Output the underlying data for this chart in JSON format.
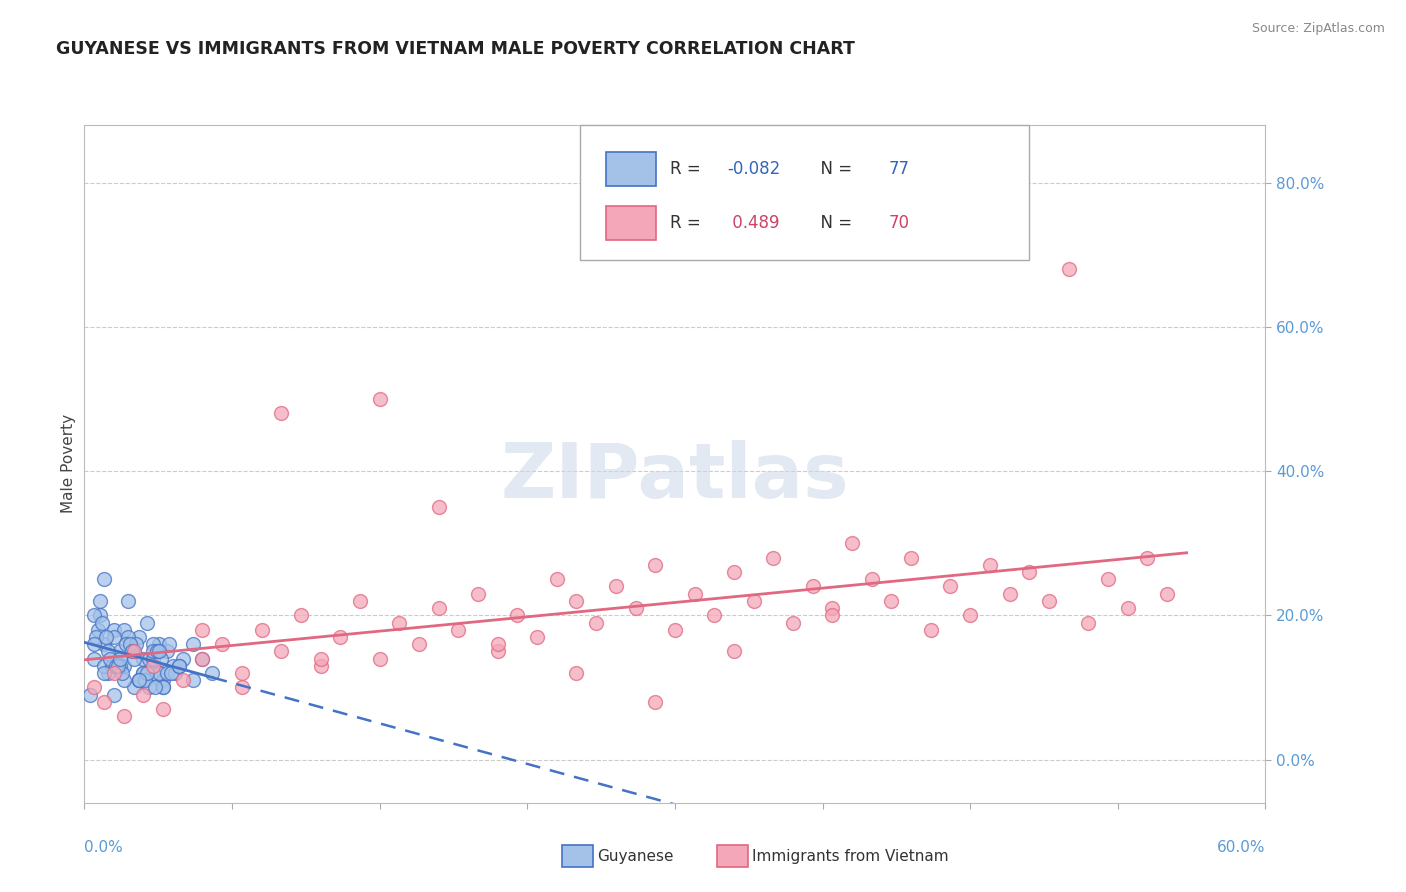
{
  "title": "GUYANESE VS IMMIGRANTS FROM VIETNAM MALE POVERTY CORRELATION CHART",
  "source": "Source: ZipAtlas.com",
  "ylabel": "Male Poverty",
  "y_tick_values": [
    0.0,
    0.2,
    0.4,
    0.6,
    0.8
  ],
  "xlim": [
    0.0,
    0.6
  ],
  "ylim": [
    -0.06,
    0.88
  ],
  "legend_label1": "Guyanese",
  "legend_label2": "Immigrants from Vietnam",
  "color_blue": "#a4c2e8",
  "color_pink": "#f4a7b9",
  "color_blue_line": "#4472c4",
  "color_pink_line": "#e06880",
  "color_blue_dark": "#3366bb",
  "color_pink_dark": "#cc4466",
  "background_color": "#ffffff",
  "r1": "-0.082",
  "n1": "77",
  "r2": "0.489",
  "n2": "70",
  "guyanese_x": [
    0.005,
    0.008,
    0.01,
    0.012,
    0.015,
    0.018,
    0.02,
    0.022,
    0.025,
    0.028,
    0.03,
    0.032,
    0.035,
    0.038,
    0.04,
    0.042,
    0.045,
    0.01,
    0.015,
    0.02,
    0.025,
    0.03,
    0.035,
    0.04,
    0.008,
    0.012,
    0.018,
    0.022,
    0.028,
    0.033,
    0.038,
    0.043,
    0.005,
    0.01,
    0.015,
    0.02,
    0.025,
    0.03,
    0.035,
    0.04,
    0.007,
    0.014,
    0.021,
    0.028,
    0.035,
    0.042,
    0.006,
    0.013,
    0.019,
    0.026,
    0.033,
    0.039,
    0.046,
    0.009,
    0.016,
    0.023,
    0.031,
    0.037,
    0.044,
    0.05,
    0.011,
    0.017,
    0.024,
    0.032,
    0.036,
    0.048,
    0.055,
    0.06,
    0.065,
    0.055,
    0.048,
    0.038,
    0.028,
    0.018,
    0.01,
    0.005,
    0.003
  ],
  "guyanese_y": [
    0.14,
    0.2,
    0.16,
    0.12,
    0.18,
    0.15,
    0.13,
    0.22,
    0.1,
    0.17,
    0.14,
    0.19,
    0.12,
    0.16,
    0.11,
    0.15,
    0.13,
    0.25,
    0.09,
    0.18,
    0.14,
    0.12,
    0.16,
    0.1,
    0.22,
    0.15,
    0.13,
    0.17,
    0.11,
    0.14,
    0.12,
    0.16,
    0.2,
    0.13,
    0.17,
    0.11,
    0.15,
    0.12,
    0.14,
    0.1,
    0.18,
    0.13,
    0.16,
    0.11,
    0.15,
    0.12,
    0.17,
    0.14,
    0.12,
    0.16,
    0.1,
    0.14,
    0.12,
    0.19,
    0.13,
    0.16,
    0.11,
    0.15,
    0.12,
    0.14,
    0.17,
    0.13,
    0.15,
    0.12,
    0.1,
    0.13,
    0.11,
    0.14,
    0.12,
    0.16,
    0.13,
    0.15,
    0.11,
    0.14,
    0.12,
    0.16,
    0.09
  ],
  "vietnam_x": [
    0.005,
    0.01,
    0.015,
    0.02,
    0.025,
    0.03,
    0.035,
    0.04,
    0.05,
    0.06,
    0.07,
    0.08,
    0.09,
    0.1,
    0.11,
    0.12,
    0.13,
    0.14,
    0.15,
    0.16,
    0.17,
    0.18,
    0.19,
    0.2,
    0.21,
    0.22,
    0.23,
    0.24,
    0.25,
    0.26,
    0.27,
    0.28,
    0.29,
    0.3,
    0.31,
    0.32,
    0.33,
    0.34,
    0.35,
    0.36,
    0.37,
    0.38,
    0.39,
    0.4,
    0.41,
    0.42,
    0.43,
    0.44,
    0.45,
    0.46,
    0.47,
    0.48,
    0.49,
    0.5,
    0.51,
    0.52,
    0.53,
    0.54,
    0.55,
    0.06,
    0.08,
    0.1,
    0.12,
    0.15,
    0.18,
    0.21,
    0.25,
    0.29,
    0.33,
    0.38
  ],
  "vietnam_y": [
    0.1,
    0.08,
    0.12,
    0.06,
    0.15,
    0.09,
    0.13,
    0.07,
    0.11,
    0.14,
    0.16,
    0.12,
    0.18,
    0.15,
    0.2,
    0.13,
    0.17,
    0.22,
    0.14,
    0.19,
    0.16,
    0.21,
    0.18,
    0.23,
    0.15,
    0.2,
    0.17,
    0.25,
    0.22,
    0.19,
    0.24,
    0.21,
    0.27,
    0.18,
    0.23,
    0.2,
    0.26,
    0.22,
    0.28,
    0.19,
    0.24,
    0.21,
    0.3,
    0.25,
    0.22,
    0.28,
    0.18,
    0.24,
    0.2,
    0.27,
    0.23,
    0.26,
    0.22,
    0.68,
    0.19,
    0.25,
    0.21,
    0.28,
    0.23,
    0.18,
    0.1,
    0.48,
    0.14,
    0.5,
    0.35,
    0.16,
    0.12,
    0.08,
    0.15,
    0.2
  ]
}
